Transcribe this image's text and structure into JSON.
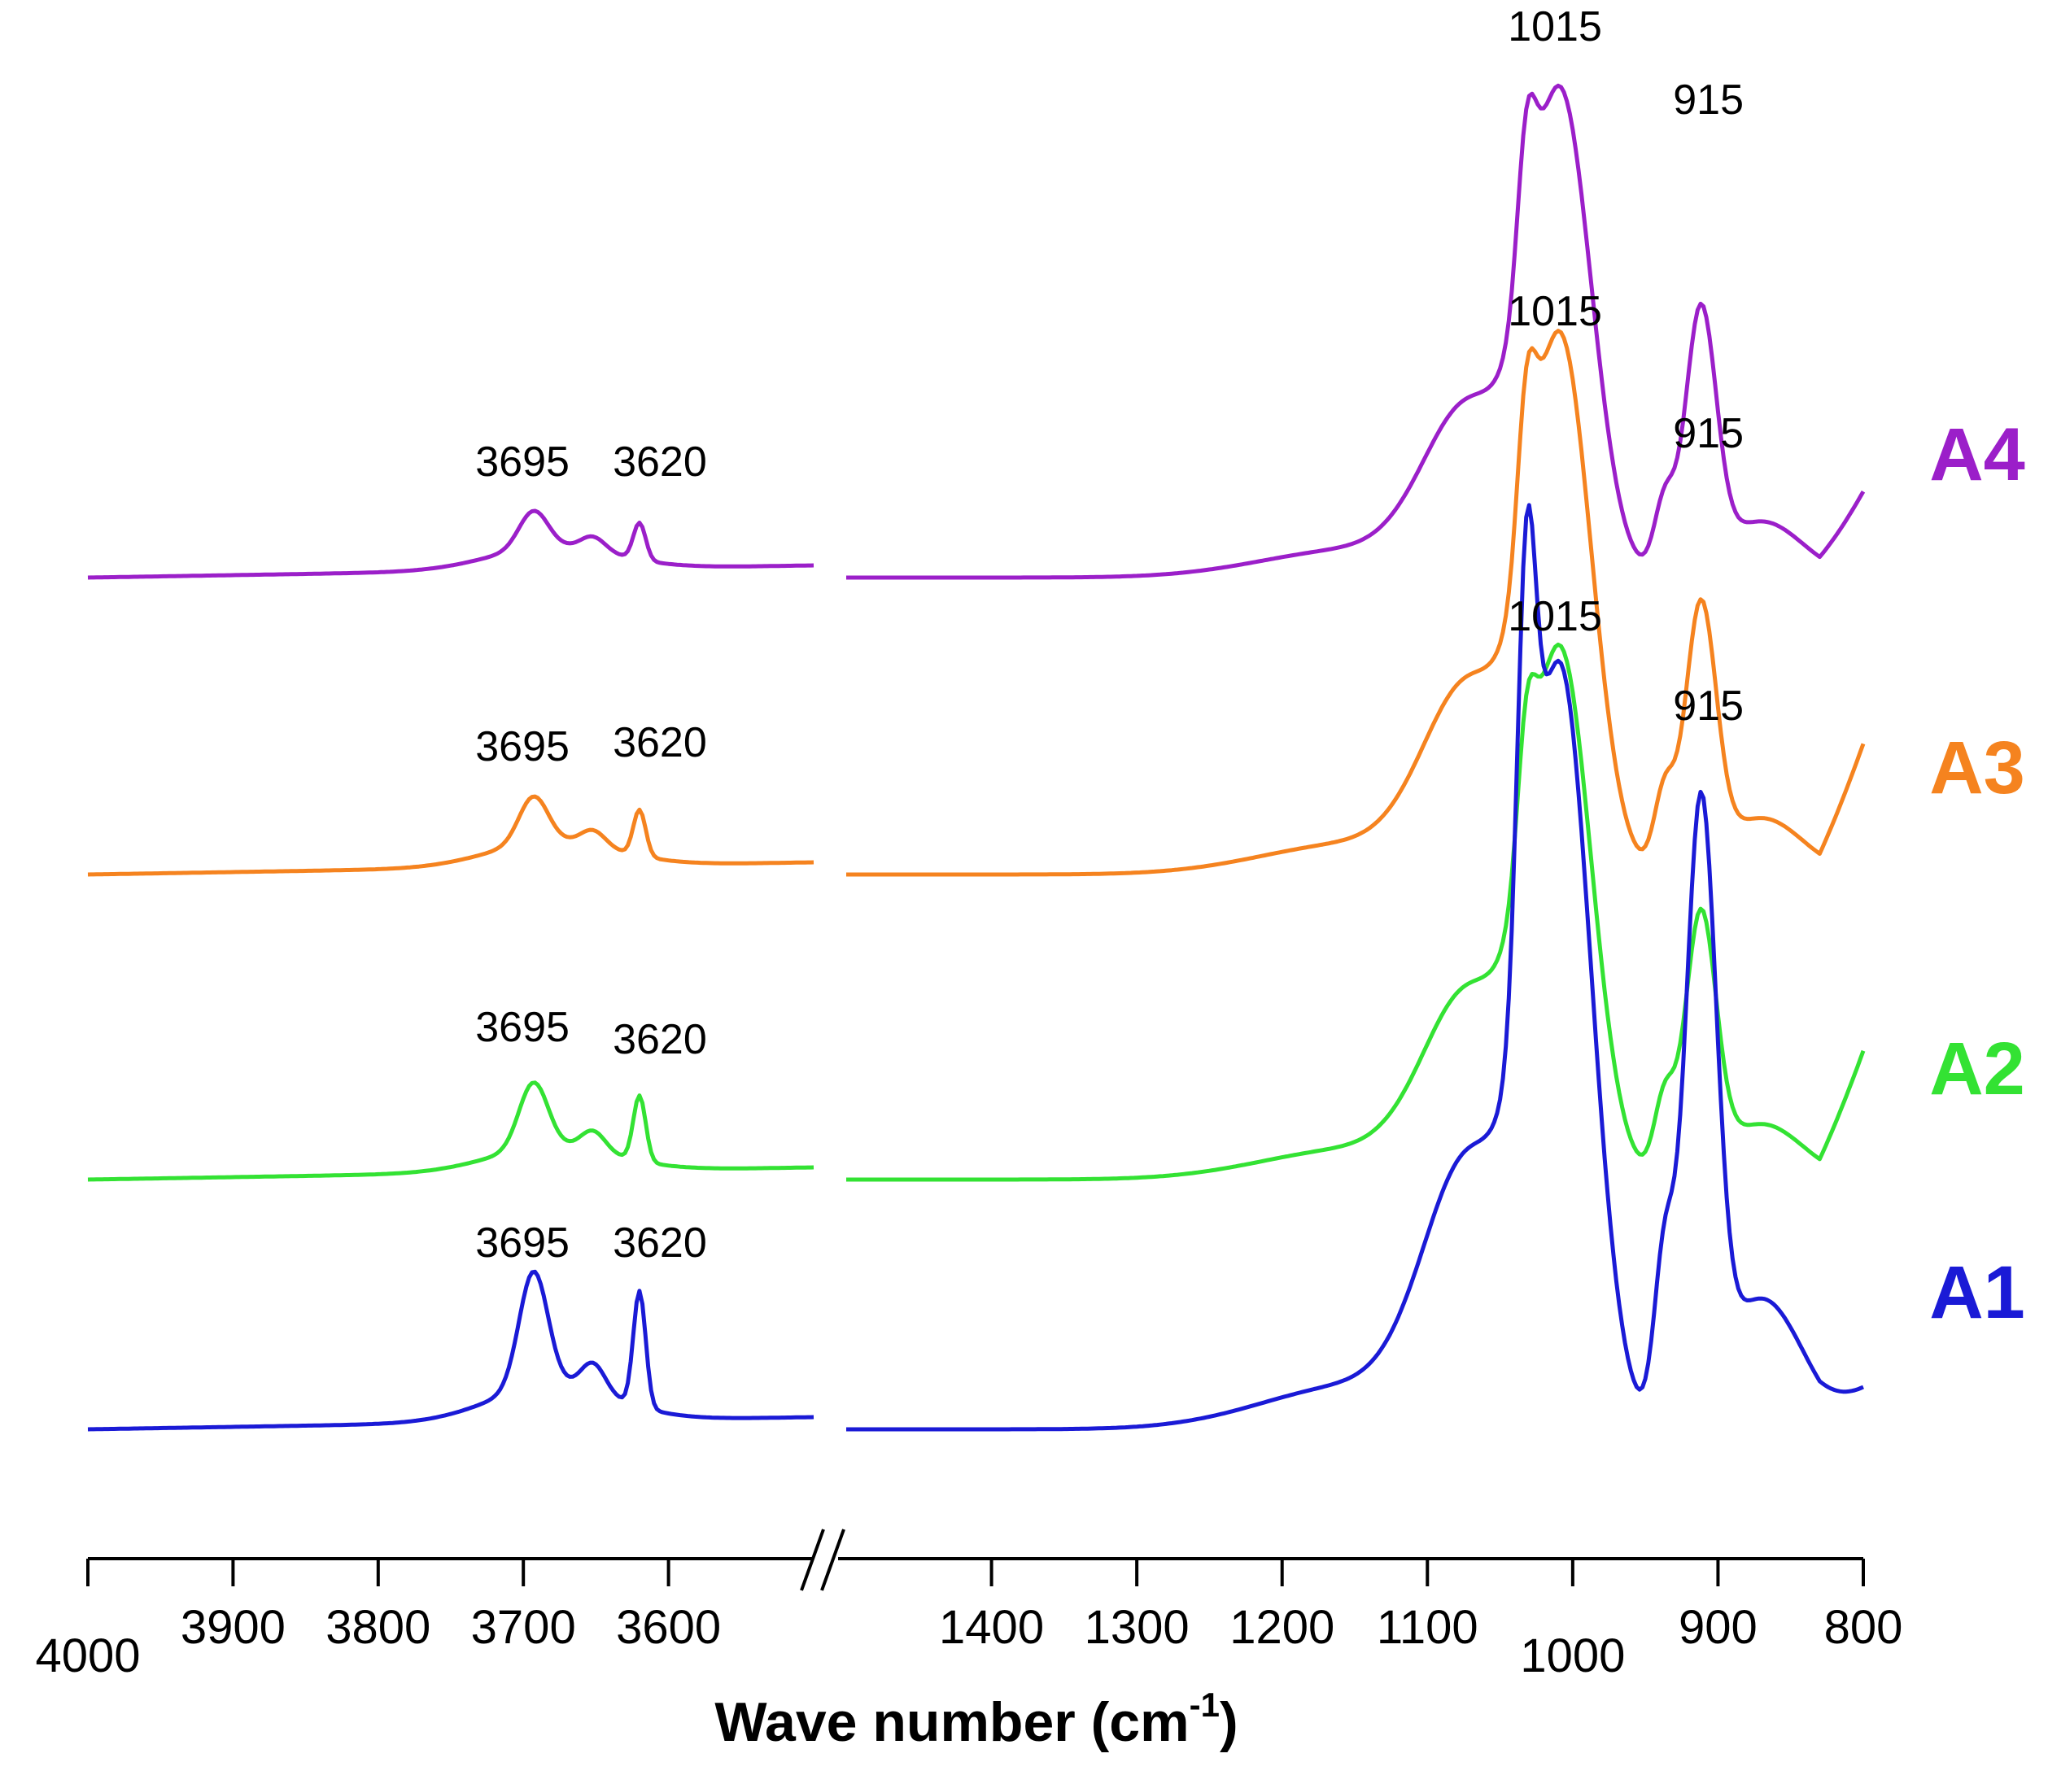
{
  "chart_data": {
    "type": "line",
    "title": "",
    "xlabel": "Wave number (cm",
    "xlabel_sup": "-1",
    "xlabel_close": ")",
    "ylabel": "",
    "x_reversed": true,
    "broken_axis": true,
    "x_segments": [
      {
        "range": [
          4000,
          3500
        ],
        "ticks": [
          "4000",
          "3900",
          "3800",
          "3700",
          "3600"
        ],
        "tick_values": [
          4000,
          3900,
          3800,
          3700,
          3600
        ]
      },
      {
        "range": [
          1500,
          800
        ],
        "ticks": [
          "1400",
          "1300",
          "1200",
          "1100",
          "1000",
          "900",
          "800"
        ],
        "tick_values": [
          1400,
          1300,
          1200,
          1100,
          1000,
          900,
          800
        ]
      }
    ],
    "series": [
      {
        "name": "A4",
        "color": "#9b1fc9"
      },
      {
        "name": "A3",
        "color": "#f5831f"
      },
      {
        "name": "A2",
        "color": "#33e233"
      },
      {
        "name": "A1",
        "color": "#1a1ad6"
      }
    ],
    "annotations": [
      {
        "series": "A4",
        "labels": [
          "3695",
          "3620",
          "1015",
          "915"
        ]
      },
      {
        "series": "A3",
        "labels": [
          "3695",
          "3620",
          "1015",
          "915"
        ]
      },
      {
        "series": "A2",
        "labels": [
          "3695",
          "3620",
          "1015",
          "915"
        ]
      },
      {
        "series": "A1",
        "labels": [
          "3695",
          "3620"
        ]
      }
    ]
  }
}
